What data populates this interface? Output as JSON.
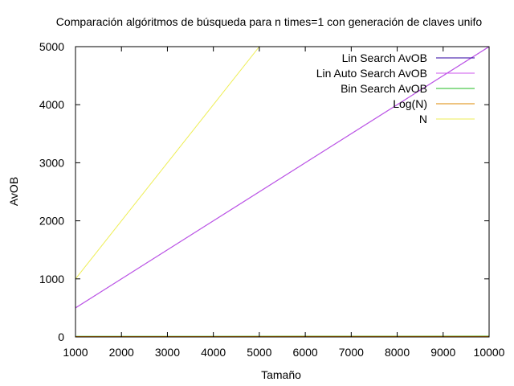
{
  "chart_data": {
    "type": "line",
    "title": "Comparación algóritmos de búsqueda para n times=1 con generación de claves unifo",
    "xlabel": "Tamaño",
    "ylabel": "AvOB",
    "xlim": [
      1000,
      10000
    ],
    "ylim": [
      0,
      5000
    ],
    "xticks": [
      "1000",
      "2000",
      "3000",
      "4000",
      "5000",
      "6000",
      "7000",
      "8000",
      "9000",
      "10000"
    ],
    "yticks": [
      "0",
      "1000",
      "2000",
      "3000",
      "4000",
      "5000"
    ],
    "legend_position": "top-right",
    "grid": false,
    "series": [
      {
        "name": "Lin Search AvOB",
        "color": "#2d00a0",
        "x": [
          1000,
          10000
        ],
        "y": [
          500,
          5000
        ]
      },
      {
        "name": "Lin Auto Search AvOB",
        "color": "#cc55ee",
        "x": [
          1000,
          10000
        ],
        "y": [
          500,
          5000
        ]
      },
      {
        "name": "Bin Search AvOB",
        "color": "#22bb22",
        "x": [
          1000,
          10000
        ],
        "y": [
          10,
          13
        ]
      },
      {
        "name": "Log(N)",
        "color": "#dd8800",
        "x": [
          1000,
          10000
        ],
        "y": [
          7,
          9
        ]
      },
      {
        "name": "N",
        "color": "#eeee55",
        "x": [
          1000,
          5000
        ],
        "y": [
          1000,
          5000
        ]
      }
    ]
  }
}
